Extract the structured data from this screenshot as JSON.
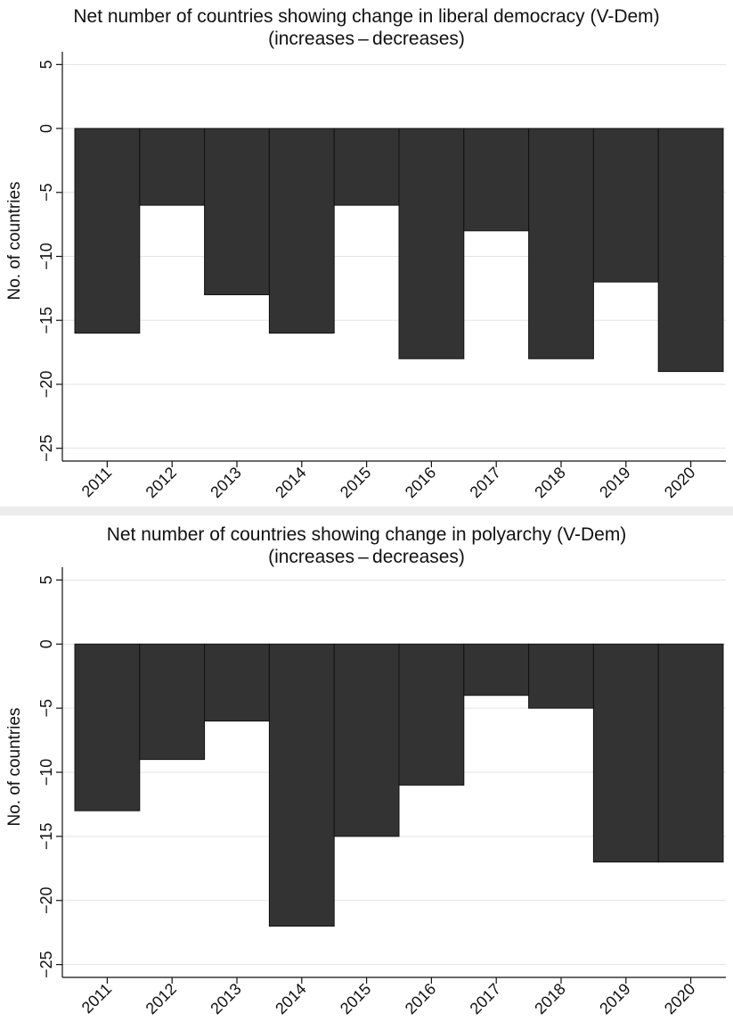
{
  "chart_data": [
    {
      "type": "bar",
      "title": "Net number of countries showing change in liberal democracy (V-Dem)",
      "subtitle": "(increases – decreases)",
      "xlabel": "",
      "ylabel": "No. of countries",
      "categories": [
        "2011",
        "2012",
        "2013",
        "2014",
        "2015",
        "2016",
        "2017",
        "2018",
        "2019",
        "2020"
      ],
      "values": [
        -16,
        -6,
        -13,
        -16,
        -6,
        -18,
        -8,
        -18,
        -12,
        -19
      ],
      "ylim": [
        -26,
        6
      ],
      "yticks": [
        5,
        0,
        -5,
        -10,
        -15,
        -20,
        -25
      ],
      "grid": true,
      "bar_color": "#333333"
    },
    {
      "type": "bar",
      "title": "Net number of countries showing change in polyarchy (V-Dem)",
      "subtitle": "(increases – decreases)",
      "xlabel": "",
      "ylabel": "No. of countries",
      "categories": [
        "2011",
        "2012",
        "2013",
        "2014",
        "2015",
        "2016",
        "2017",
        "2018",
        "2019",
        "2020"
      ],
      "values": [
        -13,
        -9,
        -6,
        -22,
        -15,
        -11,
        -4,
        -5,
        -17,
        -17
      ],
      "ylim": [
        -26,
        6
      ],
      "yticks": [
        5,
        0,
        -5,
        -10,
        -15,
        -20,
        -25
      ],
      "grid": true,
      "bar_color": "#333333"
    }
  ]
}
